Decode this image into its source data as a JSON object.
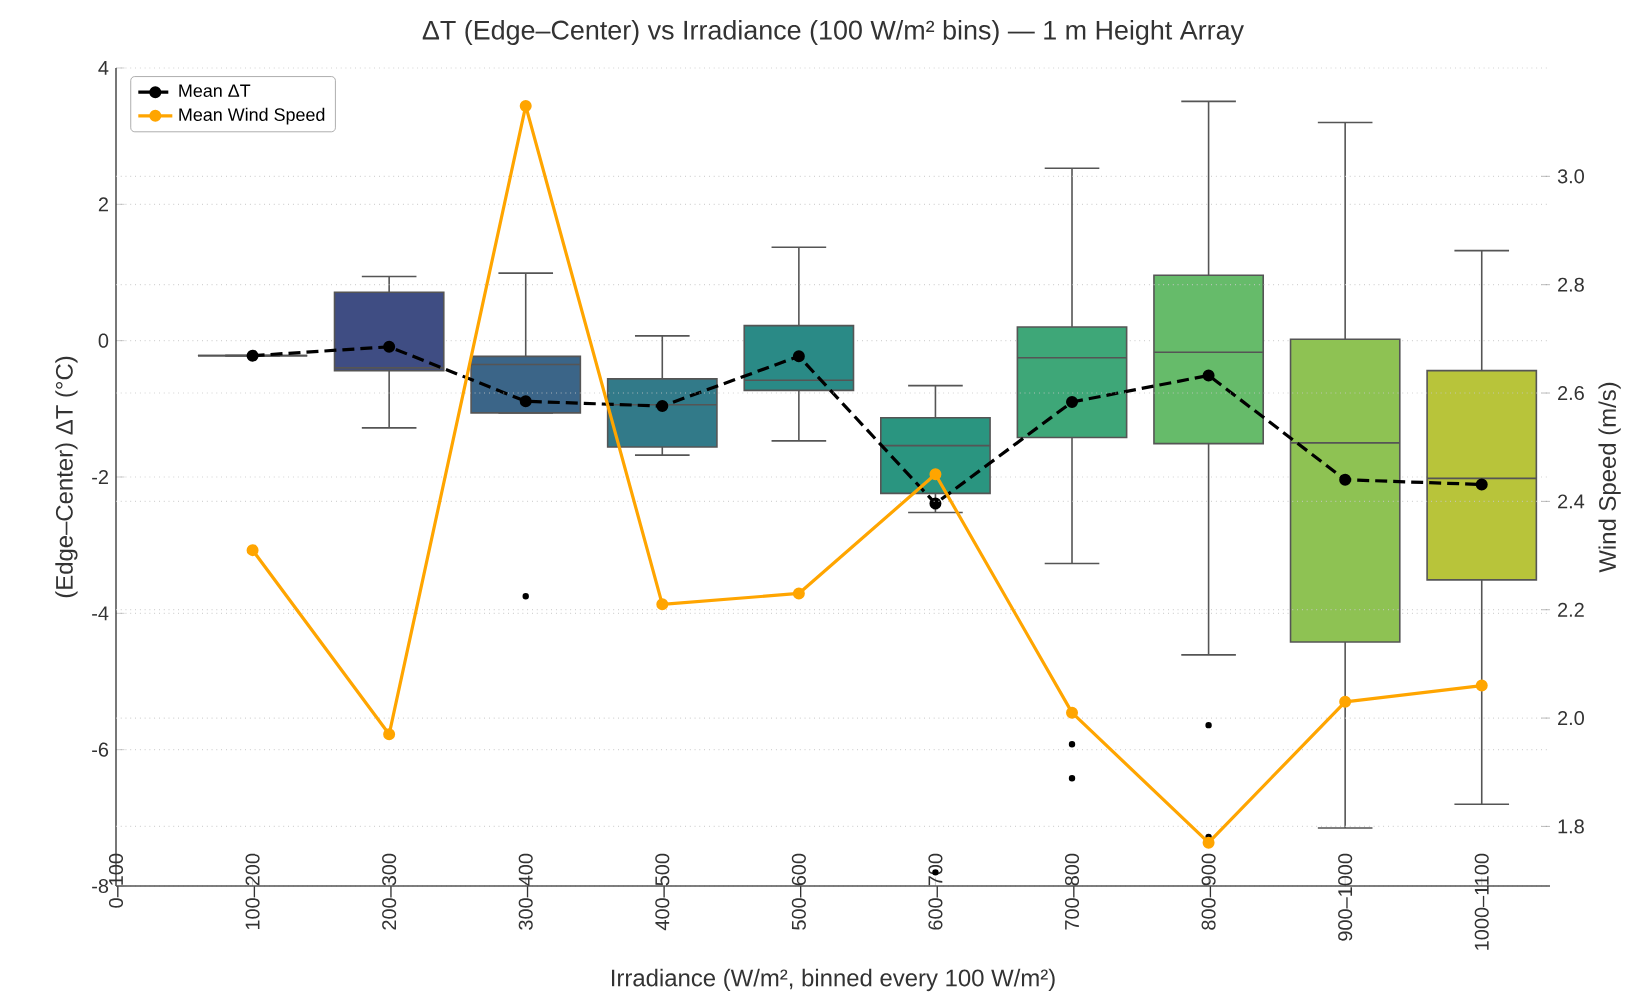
{
  "chart_data": {
    "type": "box",
    "title": "ΔT (Edge–Center) vs Irradiance (100 W/m² bins) — 1 m Height Array",
    "xlabel": "Irradiance (W/m², binned every 100 W/m²)",
    "ylabel": "(Edge–Center) ΔT (°C)",
    "y2label": "Wind Speed (m/s)",
    "categories": [
      "0–100",
      "100–200",
      "200–300",
      "300–400",
      "400–500",
      "500–600",
      "600–700",
      "700–800",
      "800–900",
      "900–1000",
      "1000–1100"
    ],
    "series": [
      {
        "colors": [
          "#46337e",
          "#555555",
          "#3f4d83",
          "#3b6588",
          "#327a89",
          "#2a8a86",
          "#2a9580",
          "#3ea778",
          "#66bb6a",
          "#8ec253",
          "#b8c43a"
        ],
        "boxes": [
          null,
          {
            "low": -0.22,
            "q1": -0.22,
            "median": -0.22,
            "q3": -0.22,
            "high": -0.22
          },
          {
            "low": -1.28,
            "q1": -0.44,
            "median": -0.4,
            "q3": 0.71,
            "high": 0.94
          },
          {
            "low": -1.06,
            "q1": -1.06,
            "median": -0.35,
            "q3": -0.23,
            "high": 0.99,
            "outliers": [
              -3.75
            ]
          },
          {
            "low": -1.68,
            "q1": -1.56,
            "median": -0.94,
            "q3": -0.56,
            "high": 0.07
          },
          {
            "low": -1.47,
            "q1": -0.73,
            "median": -0.58,
            "q3": 0.22,
            "high": 1.37
          },
          {
            "low": -2.52,
            "q1": -2.24,
            "median": -1.54,
            "q3": -1.13,
            "high": -0.66,
            "outliers": [
              -7.8
            ]
          },
          {
            "low": -3.27,
            "q1": -1.42,
            "median": -0.25,
            "q3": 0.2,
            "high": 2.53,
            "outliers": [
              -5.92,
              -6.42
            ]
          },
          {
            "low": -4.61,
            "q1": -1.51,
            "median": -0.17,
            "q3": 0.96,
            "high": 3.51,
            "outliers": [
              -5.64,
              -7.28
            ]
          },
          {
            "low": -7.15,
            "q1": -4.42,
            "median": -1.5,
            "q3": 0.02,
            "high": 3.2
          },
          {
            "low": -6.8,
            "q1": -3.51,
            "median": -2.02,
            "q3": -0.44,
            "high": 1.32
          }
        ]
      },
      {
        "type": "line",
        "name": "Mean ΔT",
        "color": "#000000",
        "line_style": "dashed",
        "marker": "circle",
        "values": [
          null,
          -0.22,
          -0.09,
          -0.89,
          -0.96,
          -0.23,
          -2.39,
          -0.9,
          -0.51,
          -2.04,
          -2.11
        ]
      },
      {
        "type": "line",
        "name": "Mean Wind Speed",
        "color": "#ffa500",
        "line_style": "solid",
        "marker": "circle",
        "axis": "y2",
        "values": [
          null,
          2.31,
          1.97,
          3.13,
          2.21,
          2.23,
          2.45,
          2.01,
          1.77,
          2.03,
          2.06
        ]
      }
    ],
    "ylim": [
      -8,
      4
    ],
    "yticks": [
      -8,
      -6,
      -4,
      -2,
      0,
      2,
      4
    ],
    "y2lim": [
      1.69,
      3.2
    ],
    "y2ticks": [
      1.8,
      {
        "value": 2,
        "label": "2.0"
      },
      2.2,
      2.4,
      2.6,
      2.8,
      {
        "value": 3,
        "label": "3.0"
      }
    ],
    "grid": "y",
    "legend": "top left"
  }
}
